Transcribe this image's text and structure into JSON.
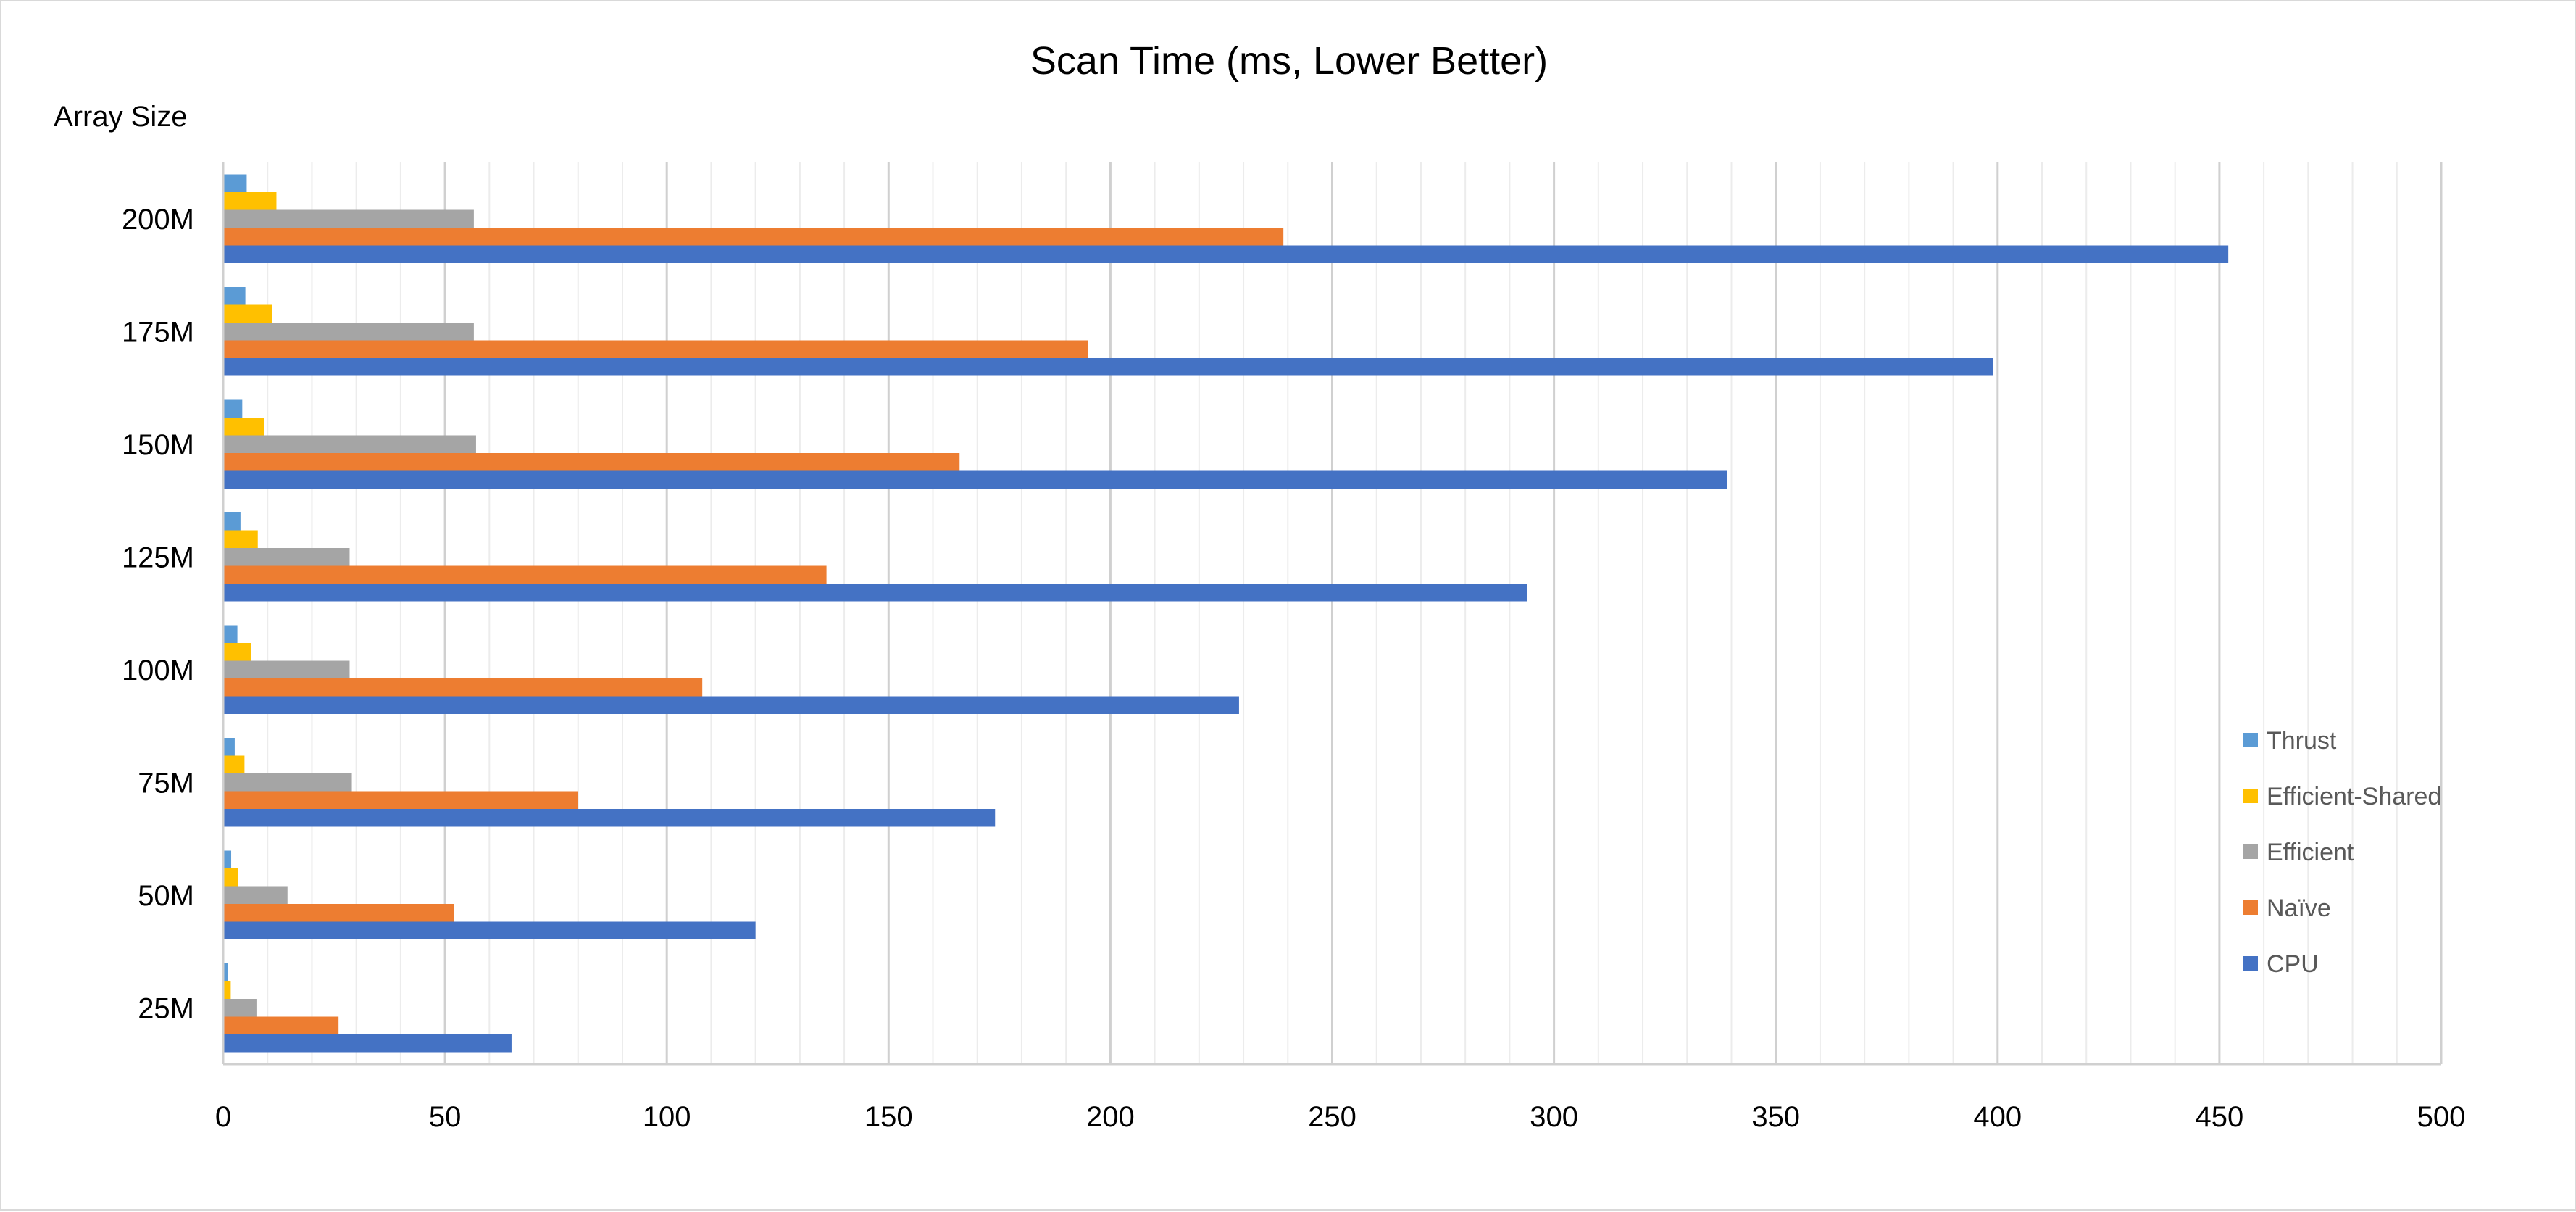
{
  "chart_data": {
    "type": "bar",
    "orientation": "horizontal",
    "title": "Scan Time (ms, Lower Better)",
    "ylabel": "Array Size",
    "xlabel": "",
    "categories": [
      "25M",
      "50M",
      "75M",
      "100M",
      "125M",
      "150M",
      "175M",
      "200M"
    ],
    "xlim": [
      0,
      500
    ],
    "x_ticks": [
      0,
      50,
      100,
      150,
      200,
      250,
      300,
      350,
      400,
      450,
      500
    ],
    "grid": "vertical major and minor gridlines",
    "legend_position": "right",
    "series": [
      {
        "name": "CPU",
        "color": "#4472C4",
        "values": [
          65,
          120,
          174,
          229,
          294,
          339,
          399,
          452
        ]
      },
      {
        "name": "Naïve",
        "color": "#ED7D31",
        "values": [
          26,
          52,
          80,
          108,
          136,
          166,
          195,
          239
        ]
      },
      {
        "name": "Efficient",
        "color": "#A5A5A5",
        "values": [
          7.5,
          14.5,
          29,
          28.5,
          28.5,
          57,
          56.5,
          56.5
        ]
      },
      {
        "name": "Efficient-Shared",
        "color": "#FFC000",
        "values": [
          1.7,
          3.3,
          4.8,
          6.3,
          7.8,
          9.3,
          11,
          12
        ]
      },
      {
        "name": "Thrust",
        "color": "#5B9BD5",
        "values": [
          1,
          1.8,
          2.6,
          3.2,
          3.9,
          4.3,
          5,
          5.3
        ]
      }
    ],
    "legend_order": [
      "Thrust",
      "Efficient-Shared",
      "Efficient",
      "Naïve",
      "CPU"
    ]
  }
}
